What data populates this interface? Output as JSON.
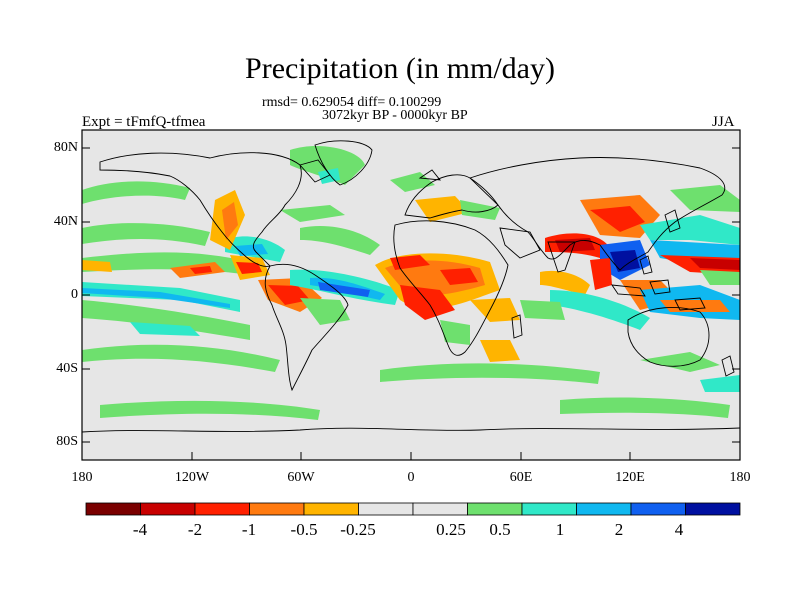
{
  "title": "Precipitation (in mm/day)",
  "stats_line": "rmsd= 0.629054 diff= 0.100299",
  "period_line": "3072kyr BP - 0000kyr BP",
  "experiment_label": "Expt = tFmfQ-tfmea",
  "season_label": "JJA",
  "lat_ticks": [
    "80N",
    "40N",
    "0",
    "40S",
    "80S"
  ],
  "lon_ticks": [
    "180",
    "120W",
    "60W",
    "0",
    "60E",
    "120E",
    "180"
  ],
  "colorbar": {
    "colors": [
      "#7a0000",
      "#c80000",
      "#ff2000",
      "#ff7a10",
      "#ffb400",
      "#e6e6e6",
      "#e6e6e6",
      "#6ee06e",
      "#30e8c8",
      "#10b8f0",
      "#1060f0",
      "#0010a0"
    ],
    "labels": [
      "-4",
      "-2",
      "-1",
      "-0.5",
      "-0.25",
      "0.25",
      "0.5",
      "1",
      "2",
      "4"
    ]
  },
  "colors": {
    "background_field": "#e6e6e6",
    "coastline": "#000000"
  }
}
